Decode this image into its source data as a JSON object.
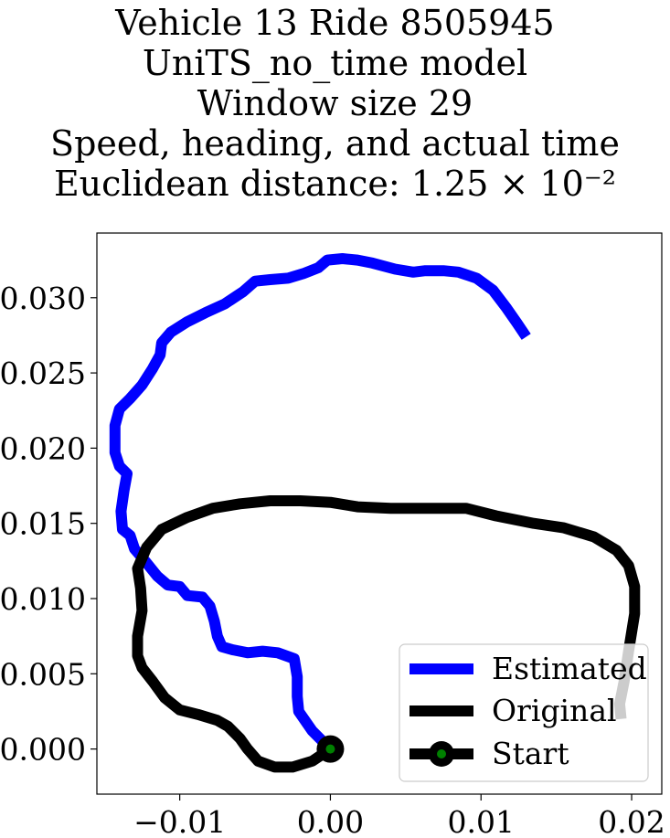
{
  "title_lines": [
    "Vehicle 13 Ride 8505945",
    "UniTS_no_time model",
    "Window size 29",
    "Speed, heading, and actual time",
    "Euclidean distance: 1.25 × 10⁻²"
  ],
  "chart_data": {
    "type": "line",
    "xlim": [
      -0.0155,
      0.022
    ],
    "ylim": [
      -0.003,
      0.0343
    ],
    "x_ticks": [
      -0.01,
      0.0,
      0.01,
      0.02
    ],
    "x_tick_labels": [
      "−0.01",
      "0.00",
      "0.01",
      "0.02"
    ],
    "y_ticks": [
      0.0,
      0.005,
      0.01,
      0.015,
      0.02,
      0.025,
      0.03
    ],
    "y_tick_labels": [
      "0.000",
      "0.005",
      "0.010",
      "0.015",
      "0.020",
      "0.025",
      "0.030"
    ],
    "grid": false,
    "legend_position": "lower-right",
    "series": [
      {
        "name": "Estimated",
        "color": "#0000ff",
        "points": [
          [
            0.0,
            0.0
          ],
          [
            -0.0012,
            0.0012
          ],
          [
            -0.0021,
            0.0025
          ],
          [
            -0.0022,
            0.0035
          ],
          [
            -0.0022,
            0.0048
          ],
          [
            -0.0024,
            0.006
          ],
          [
            -0.0035,
            0.0064
          ],
          [
            -0.0045,
            0.0065
          ],
          [
            -0.0055,
            0.0064
          ],
          [
            -0.0065,
            0.0066
          ],
          [
            -0.0072,
            0.0068
          ],
          [
            -0.0075,
            0.0075
          ],
          [
            -0.0077,
            0.0085
          ],
          [
            -0.008,
            0.0095
          ],
          [
            -0.0085,
            0.0101
          ],
          [
            -0.0095,
            0.0102
          ],
          [
            -0.01,
            0.0108
          ],
          [
            -0.0108,
            0.0109
          ],
          [
            -0.0115,
            0.0115
          ],
          [
            -0.0123,
            0.0125
          ],
          [
            -0.013,
            0.0133
          ],
          [
            -0.0133,
            0.0142
          ],
          [
            -0.0138,
            0.0146
          ],
          [
            -0.0139,
            0.0158
          ],
          [
            -0.0137,
            0.0172
          ],
          [
            -0.0135,
            0.0183
          ],
          [
            -0.014,
            0.0188
          ],
          [
            -0.0143,
            0.0197
          ],
          [
            -0.0143,
            0.0215
          ],
          [
            -0.014,
            0.0226
          ],
          [
            -0.0133,
            0.0233
          ],
          [
            -0.0125,
            0.0242
          ],
          [
            -0.0118,
            0.0253
          ],
          [
            -0.0113,
            0.0262
          ],
          [
            -0.0112,
            0.027
          ],
          [
            -0.0106,
            0.0277
          ],
          [
            -0.0095,
            0.0284
          ],
          [
            -0.0083,
            0.029
          ],
          [
            -0.007,
            0.0296
          ],
          [
            -0.0058,
            0.0304
          ],
          [
            -0.005,
            0.0311
          ],
          [
            -0.004,
            0.0312
          ],
          [
            -0.0028,
            0.0313
          ],
          [
            -0.0018,
            0.0316
          ],
          [
            -0.0008,
            0.032
          ],
          [
            -0.0002,
            0.0325
          ],
          [
            0.0008,
            0.0326
          ],
          [
            0.0018,
            0.0325
          ],
          [
            0.0028,
            0.0323
          ],
          [
            0.0043,
            0.0319
          ],
          [
            0.0055,
            0.0317
          ],
          [
            0.0063,
            0.0318
          ],
          [
            0.0075,
            0.0318
          ],
          [
            0.0085,
            0.0317
          ],
          [
            0.0097,
            0.0313
          ],
          [
            0.0108,
            0.0305
          ],
          [
            0.0117,
            0.0293
          ],
          [
            0.0124,
            0.0283
          ],
          [
            0.013,
            0.0274
          ]
        ]
      },
      {
        "name": "Original",
        "color": "#000000",
        "points": [
          [
            0.0,
            0.0
          ],
          [
            -0.0012,
            -0.0008
          ],
          [
            -0.0025,
            -0.0012
          ],
          [
            -0.0037,
            -0.0012
          ],
          [
            -0.0048,
            -0.0008
          ],
          [
            -0.0055,
            0.0
          ],
          [
            -0.006,
            0.0007
          ],
          [
            -0.0068,
            0.0015
          ],
          [
            -0.0075,
            0.0019
          ],
          [
            -0.0088,
            0.0023
          ],
          [
            -0.01,
            0.0026
          ],
          [
            -0.011,
            0.0034
          ],
          [
            -0.0118,
            0.0045
          ],
          [
            -0.0125,
            0.0054
          ],
          [
            -0.0128,
            0.0062
          ],
          [
            -0.0128,
            0.0075
          ],
          [
            -0.0125,
            0.0092
          ],
          [
            -0.0126,
            0.0107
          ],
          [
            -0.0128,
            0.012
          ],
          [
            -0.0122,
            0.0134
          ],
          [
            -0.0112,
            0.0146
          ],
          [
            -0.0095,
            0.0154
          ],
          [
            -0.0078,
            0.016
          ],
          [
            -0.006,
            0.0163
          ],
          [
            -0.004,
            0.0165
          ],
          [
            -0.002,
            0.0165
          ],
          [
            0.0,
            0.0164
          ],
          [
            0.0018,
            0.0161
          ],
          [
            0.004,
            0.016
          ],
          [
            0.0065,
            0.016
          ],
          [
            0.009,
            0.016
          ],
          [
            0.011,
            0.0155
          ],
          [
            0.0135,
            0.015
          ],
          [
            0.0155,
            0.0147
          ],
          [
            0.0175,
            0.0141
          ],
          [
            0.019,
            0.0132
          ],
          [
            0.0198,
            0.0122
          ],
          [
            0.0202,
            0.0108
          ],
          [
            0.0202,
            0.009
          ],
          [
            0.0198,
            0.0065
          ],
          [
            0.0195,
            0.0045
          ],
          [
            0.0192,
            0.003
          ],
          [
            0.0193,
            0.002
          ]
        ]
      }
    ],
    "start_marker": {
      "name": "Start",
      "point": [
        0.0,
        0.0
      ],
      "outer_color": "#000000",
      "inner_color": "#008000"
    }
  }
}
